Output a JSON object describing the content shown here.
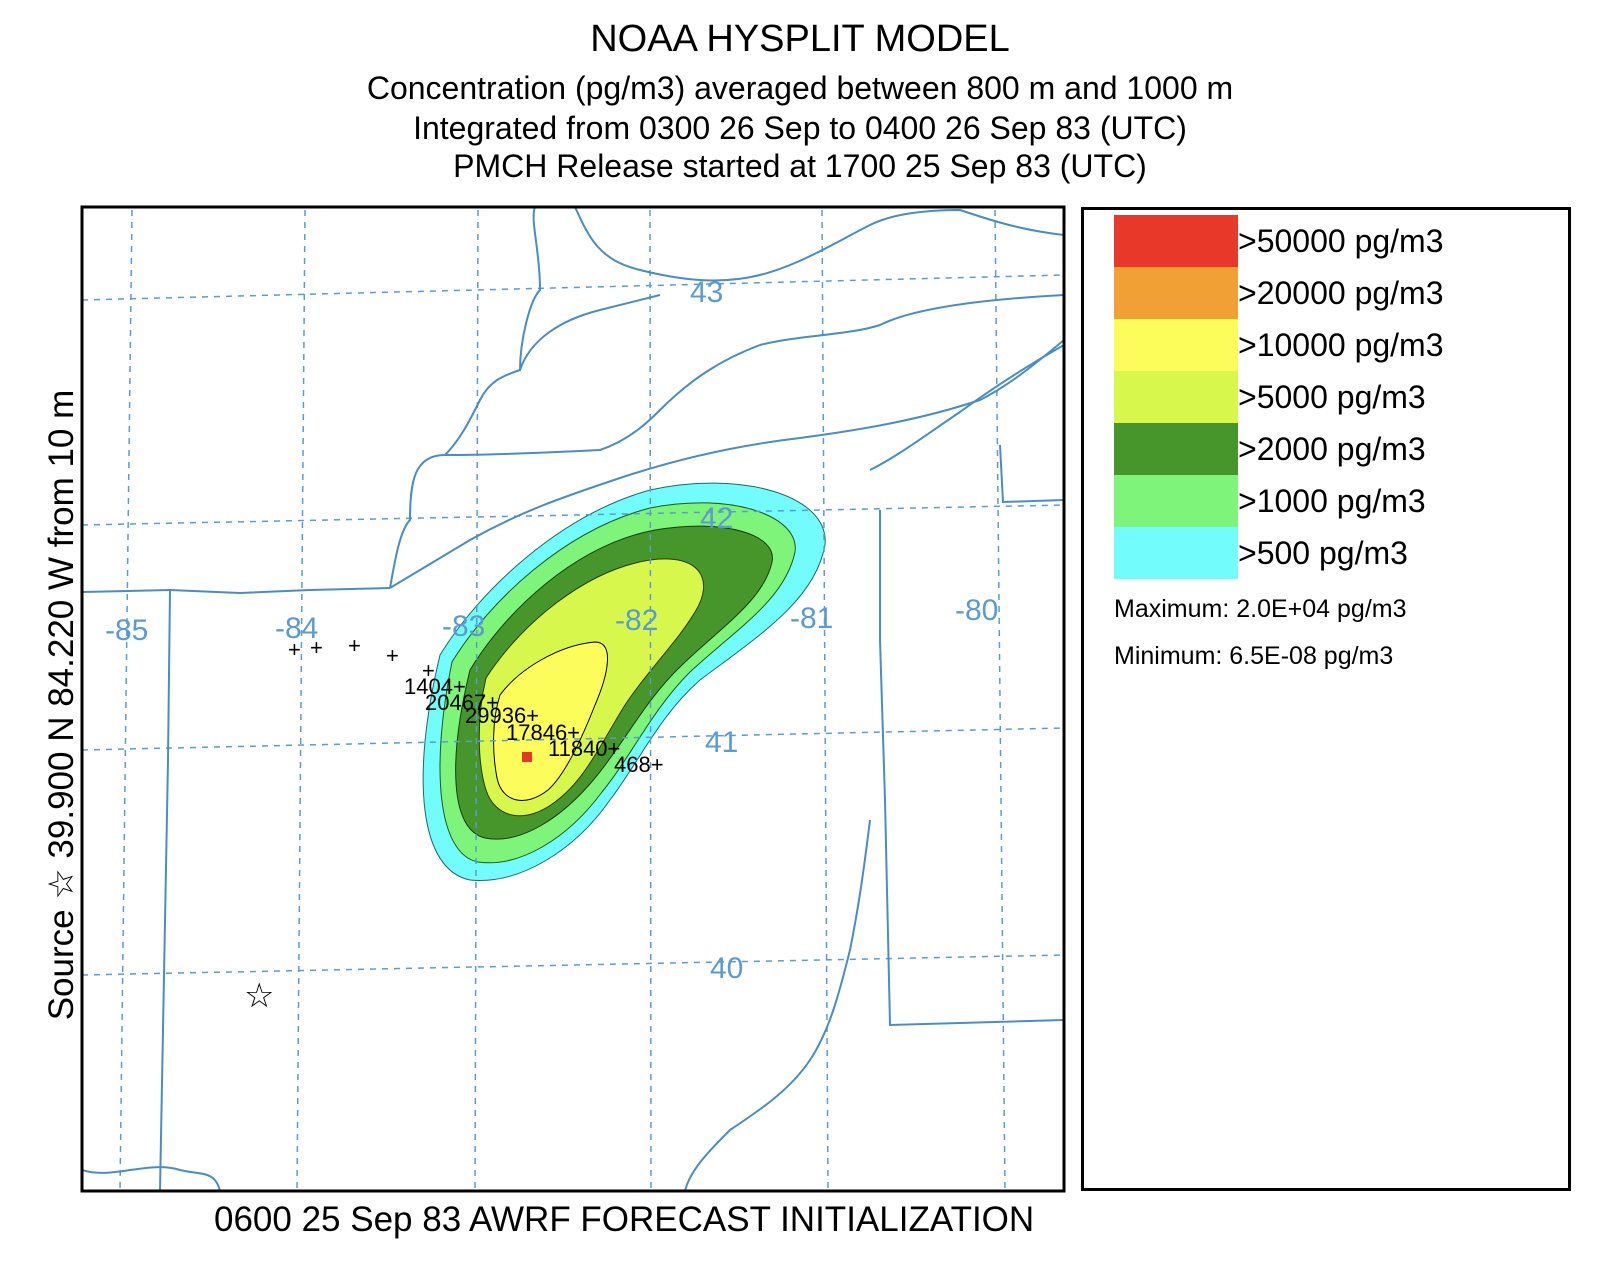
{
  "header": {
    "title": "NOAA HYSPLIT MODEL",
    "line2": "Concentration  (pg/m3) averaged between   800 m and  1000 m",
    "line3": "Integrated from 0300 26 Sep to 0400 26 Sep 83 (UTC)",
    "line4": "PMCH Release started at 1700 25 Sep 83 (UTC)"
  },
  "side_label": "Source ☆ 39.900  N  84.220  W  from  10 m",
  "footer": "0600 25 Sep 83 AWRF FORECAST INITIALIZATION",
  "map": {
    "lon_labels": [
      "-85",
      "-84",
      "-83",
      "-82",
      "-81",
      "-80"
    ],
    "lat_labels": [
      "43",
      "42",
      "41",
      "40"
    ],
    "source_marker": "☆",
    "stations": [
      {
        "label": "1404+"
      },
      {
        "label": "20467+"
      },
      {
        "label": "29936+"
      },
      {
        "label": "17846+"
      },
      {
        "label": "11840+"
      },
      {
        "label": "468+"
      }
    ],
    "unlabeled_marker": "+",
    "colors": {
      "grid": "#5b9bd5",
      "boundary": "#4a8dc2",
      "max_point": "#e8352a"
    }
  },
  "legend": {
    "items": [
      {
        "label": ">50000 pg/m3",
        "color": "#e8382a"
      },
      {
        "label": ">20000 pg/m3",
        "color": "#f0a035"
      },
      {
        "label": ">10000 pg/m3",
        "color": "#fcfc5a"
      },
      {
        "label": ">5000 pg/m3",
        "color": "#d8f74c"
      },
      {
        "label": ">2000 pg/m3",
        "color": "#46962c"
      },
      {
        "label": ">1000 pg/m3",
        "color": "#7ef47a"
      },
      {
        "label": ">500 pg/m3",
        "color": "#72fcfc"
      }
    ],
    "maximum": "Maximum: 2.0E+04 pg/m3",
    "minimum": "Minimum: 6.5E-08 pg/m3"
  }
}
